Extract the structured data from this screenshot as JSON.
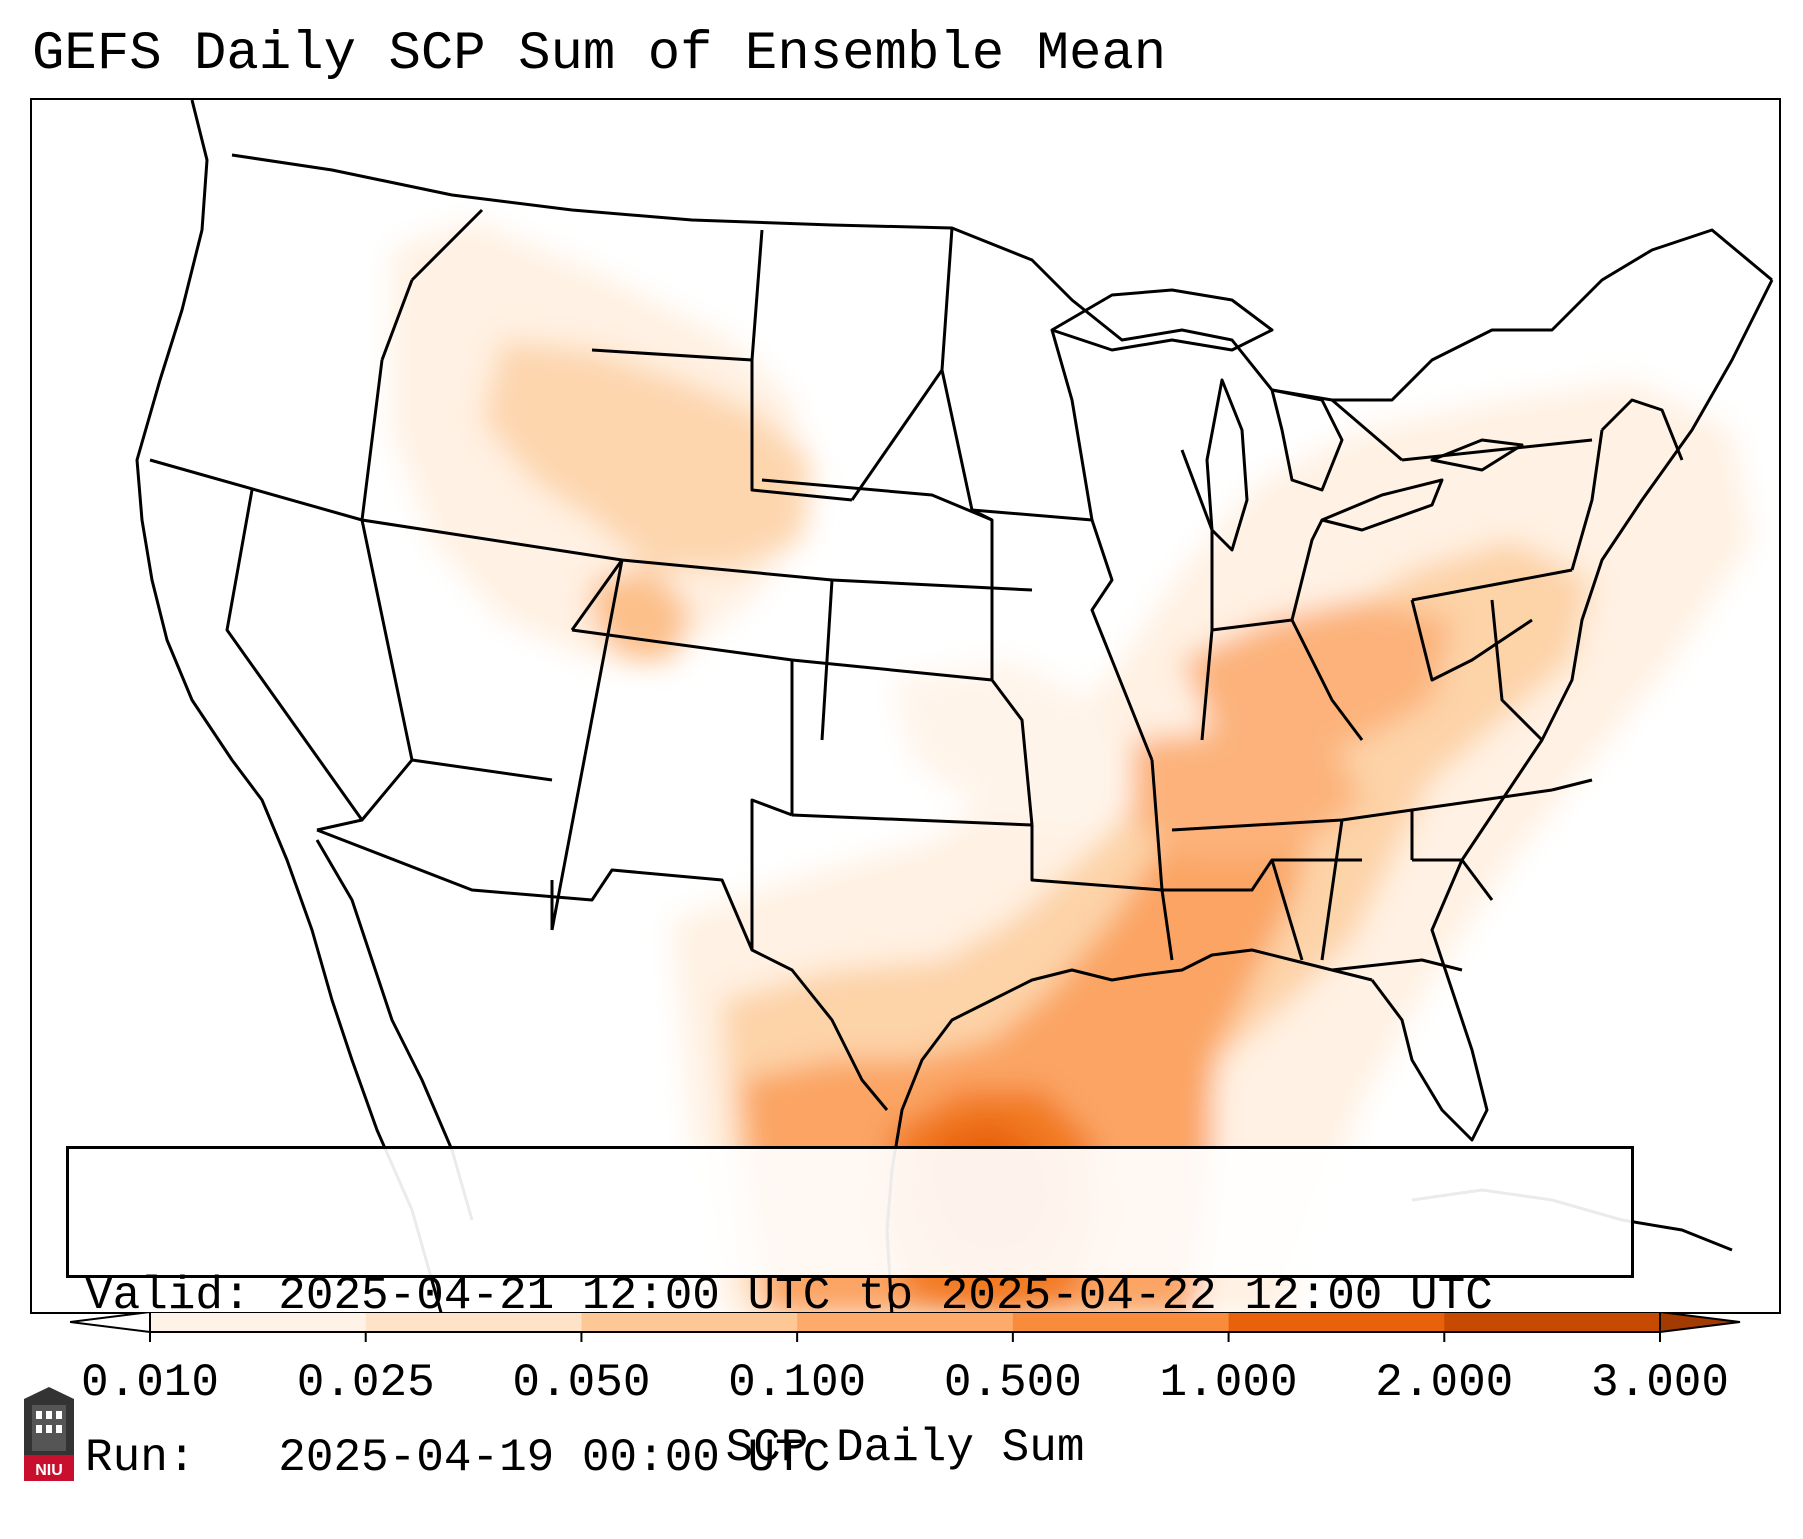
{
  "title": "GEFS Daily SCP Sum of Ensemble Mean",
  "info": {
    "valid_line": "Valid: 2025-04-21 12:00 UTC to 2025-04-22 12:00 UTC",
    "run_line": "Run:   2025-04-19 00:00 UTC"
  },
  "colorbar": {
    "label": "SCP Daily Sum",
    "ticks": [
      "0.010",
      "0.025",
      "0.050",
      "0.100",
      "0.500",
      "1.000",
      "2.000",
      "3.000"
    ],
    "colors": [
      "#fff2e6",
      "#fee3c8",
      "#fdc895",
      "#fdaa6b",
      "#f98c3c",
      "#e8620c",
      "#c64a02"
    ],
    "under_color": "#ffffff",
    "over_color": "#a33a02"
  },
  "logo": {
    "text": "NIU",
    "color": "#c8102e"
  },
  "colors": {
    "border": "#000000",
    "background": "#ffffff"
  }
}
